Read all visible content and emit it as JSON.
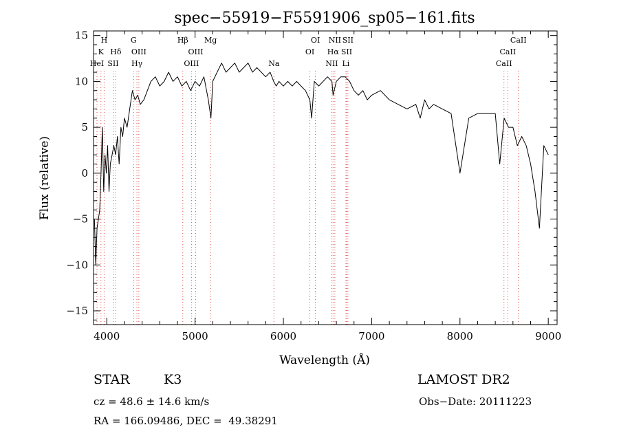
{
  "chart_data": {
    "type": "line",
    "title": "spec−55919−F5591906_sp05−161.fits",
    "xlabel": "Wavelength (Å)",
    "ylabel": "Flux (relative)",
    "xlim": [
      3850,
      9100
    ],
    "ylim": [
      -16.5,
      15.5
    ],
    "xticks": [
      4000,
      5000,
      6000,
      7000,
      8000,
      9000
    ],
    "xtick_labels": [
      "4000",
      "5000",
      "6000",
      "7000",
      "8000",
      "9000"
    ],
    "yticks": [
      -15,
      -10,
      -5,
      0,
      5,
      10,
      15
    ],
    "ytick_labels": [
      "−15",
      "−10",
      "−5",
      "0",
      "5",
      "10",
      "15"
    ],
    "grid": false,
    "series": [
      {
        "color": "#000000",
        "x": [
          3860,
          3875,
          3890,
          3905,
          3920,
          3935,
          3950,
          3965,
          3980,
          3995,
          4010,
          4025,
          4040,
          4060,
          4080,
          4100,
          4120,
          4140,
          4160,
          4180,
          4200,
          4230,
          4260,
          4290,
          4320,
          4350,
          4380,
          4420,
          4460,
          4500,
          4550,
          4600,
          4650,
          4700,
          4750,
          4800,
          4850,
          4900,
          4950,
          5000,
          5050,
          5100,
          5150,
          5180,
          5200,
          5250,
          5300,
          5350,
          5400,
          5450,
          5500,
          5550,
          5600,
          5650,
          5700,
          5750,
          5800,
          5850,
          5890,
          5920,
          5950,
          6000,
          6050,
          6100,
          6150,
          6200,
          6250,
          6300,
          6320,
          6350,
          6400,
          6450,
          6500,
          6550,
          6563,
          6600,
          6650,
          6700,
          6750,
          6800,
          6850,
          6900,
          6950,
          7000,
          7100,
          7200,
          7300,
          7400,
          7500,
          7550,
          7600,
          7650,
          7700,
          7800,
          7900,
          8000,
          8100,
          8200,
          8300,
          8400,
          8450,
          8500,
          8550,
          8600,
          8650,
          8700,
          8750,
          8800,
          8850,
          8900,
          8950,
          9000
        ],
        "y": [
          -5,
          -10,
          -6,
          -5,
          -4,
          0,
          5,
          -2,
          2,
          0,
          3,
          -2,
          1,
          2,
          3,
          2,
          4,
          1,
          5,
          4,
          6,
          5,
          7,
          9,
          8,
          8.5,
          7.5,
          8,
          9,
          10,
          10.5,
          9.5,
          10,
          11,
          10,
          10.5,
          9.5,
          10,
          9,
          10,
          9.5,
          10.5,
          8,
          6,
          10,
          11,
          12,
          11,
          11.5,
          12,
          11,
          11.5,
          12,
          11,
          11.5,
          11,
          10.5,
          11,
          10,
          9.5,
          10,
          9.5,
          10,
          9.5,
          10,
          9.5,
          9,
          8,
          6,
          10,
          9.5,
          10,
          10.5,
          10,
          8.5,
          10,
          10.5,
          10.5,
          10,
          9,
          8.5,
          9,
          8,
          8.5,
          9,
          8,
          7.5,
          7,
          7.5,
          6,
          8,
          7,
          7.5,
          7,
          6.5,
          0,
          6,
          6.5,
          6.5,
          6.5,
          1,
          6,
          5,
          5,
          3,
          4,
          3,
          1,
          -2,
          -6,
          3,
          2
        ]
      }
    ],
    "emission_lines": [
      {
        "x": 3889,
        "label": "HeI",
        "row": 3
      },
      {
        "x": 3934,
        "label": "K",
        "row": 2
      },
      {
        "x": 3970,
        "label": "H",
        "row": 1
      },
      {
        "x": 4072,
        "label": "SII",
        "row": 3
      },
      {
        "x": 4102,
        "label": "Hδ",
        "row": 2
      },
      {
        "x": 4304,
        "label": "G",
        "row": 1
      },
      {
        "x": 4341,
        "label": "Hγ",
        "row": 3
      },
      {
        "x": 4363,
        "label": "OIII",
        "row": 2
      },
      {
        "x": 4861,
        "label": "Hβ",
        "row": 1
      },
      {
        "x": 4959,
        "label": "OIII",
        "row": 3
      },
      {
        "x": 5007,
        "label": "OIII",
        "row": 2
      },
      {
        "x": 5175,
        "label": "Mg",
        "row": 1
      },
      {
        "x": 5893,
        "label": "Na",
        "row": 3
      },
      {
        "x": 6300,
        "label": "OI",
        "row": 2
      },
      {
        "x": 6363,
        "label": "OI",
        "row": 1
      },
      {
        "x": 6548,
        "label": "NII",
        "row": 3
      },
      {
        "x": 6563,
        "label": "Hα",
        "row": 2
      },
      {
        "x": 6583,
        "label": "NII",
        "row": 1
      },
      {
        "x": 6708,
        "label": "Li",
        "row": 3
      },
      {
        "x": 6716,
        "label": "SII",
        "row": 2
      },
      {
        "x": 6731,
        "label": "SII",
        "row": 1
      },
      {
        "x": 8498,
        "label": "CaII",
        "row": 3
      },
      {
        "x": 8542,
        "label": "CaII",
        "row": 2
      },
      {
        "x": 8662,
        "label": "CaII",
        "row": 1
      }
    ]
  },
  "info": {
    "object_class": "STAR",
    "subclass": "K3",
    "survey": "LAMOST DR2",
    "redshift": "cz = 48.6 ± 14.6 km/s",
    "obs_date": "Obs−Date: 20111223",
    "coords": "RA = 166.09486, DEC =  49.38291"
  }
}
